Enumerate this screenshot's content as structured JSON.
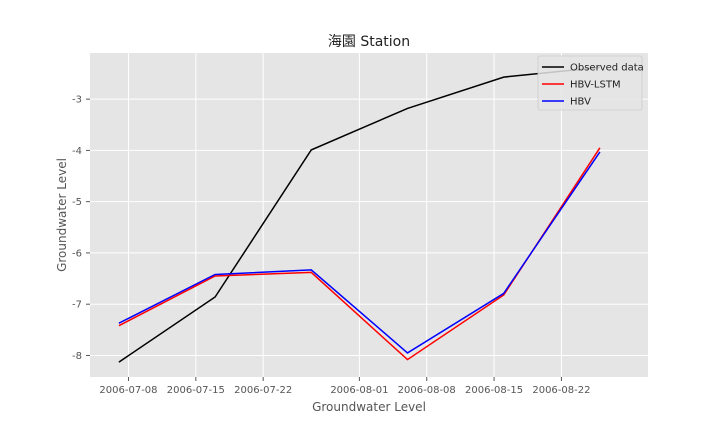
{
  "chart_data": {
    "type": "line",
    "title": "海園 Station",
    "xlabel": "Groundwater Level",
    "ylabel": "Groundwater Level",
    "x_range": [
      "2006-07-04",
      "2006-08-31"
    ],
    "ylim": [
      -8.42,
      -2.1
    ],
    "x_ticks": [
      "2006-07-08",
      "2006-07-15",
      "2006-07-22",
      "2006-08-01",
      "2006-08-08",
      "2006-08-15",
      "2006-08-22"
    ],
    "y_ticks": [
      -8,
      -7,
      -6,
      -5,
      -4,
      -3
    ],
    "grid": true,
    "legend_position": "top-right",
    "x": [
      "2006-07-07",
      "2006-07-17",
      "2006-07-27",
      "2006-08-06",
      "2006-08-16",
      "2006-08-26"
    ],
    "series": [
      {
        "name": "Observed data",
        "color": "#000000",
        "values": [
          -8.13,
          -6.86,
          -3.99,
          -3.18,
          -2.57,
          -2.38
        ]
      },
      {
        "name": "HBV-LSTM",
        "color": "#ff0000",
        "values": [
          -7.42,
          -6.45,
          -6.38,
          -8.08,
          -6.82,
          -3.95
        ]
      },
      {
        "name": "HBV",
        "color": "#0000ff",
        "values": [
          -7.37,
          -6.42,
          -6.33,
          -7.95,
          -6.79,
          -4.03
        ]
      }
    ]
  }
}
